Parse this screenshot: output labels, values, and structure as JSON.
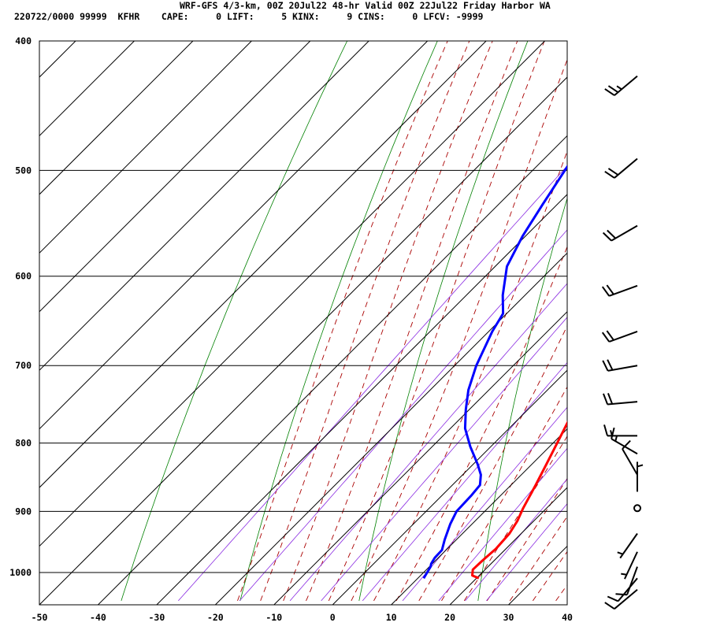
{
  "header": {
    "line1": "WRF-GFS 4/3-km, 00Z 20Jul22 48-hr Valid 00Z 22Jul22 Friday Harbor WA",
    "line2": "220722/0000 99999  KFHR    CAPE:     0 LIFT:     5 KINX:     9 CINS:     0 LFCV: -9999"
  },
  "colors": {
    "temperature": "#ff0000",
    "dewpoint": "#0000ff",
    "dry_adiabat": "#008000",
    "moist_adiabat": "#aa0000",
    "mixing_ratio": "#8a2be2",
    "grid": "#000000",
    "wind_barb": "#000000"
  },
  "chart_data": {
    "type": "line",
    "subtype": "skew-T log-P sounding",
    "x_ticks": [
      "-50",
      "-40",
      "-30",
      "-20",
      "-10",
      "0",
      "10",
      "20",
      "30",
      "40"
    ],
    "y_ticks": [
      "400",
      "500",
      "600",
      "700",
      "800",
      "900",
      "1000"
    ],
    "xlim": [
      -50,
      40
    ],
    "ylim": [
      1040,
      400
    ],
    "y_scale": "log",
    "grid": true,
    "series": [
      {
        "color": "#ff0000",
        "points": [
          {
            "p": 1010,
            "t": 20.4
          },
          {
            "p": 1005,
            "t": 18.8
          },
          {
            "p": 995,
            "t": 17.9
          },
          {
            "p": 980,
            "t": 18.0
          },
          {
            "p": 960,
            "t": 18.3
          },
          {
            "p": 935,
            "t": 18.0
          },
          {
            "p": 915,
            "t": 17.2
          },
          {
            "p": 895,
            "t": 16.0
          },
          {
            "p": 860,
            "t": 14.2
          },
          {
            "p": 830,
            "t": 12.5
          },
          {
            "p": 800,
            "t": 10.7
          },
          {
            "p": 760,
            "t": 8.2
          },
          {
            "p": 720,
            "t": 5.2
          },
          {
            "p": 680,
            "t": 2.5
          },
          {
            "p": 640,
            "t": -0.8
          },
          {
            "p": 600,
            "t": -3.8
          },
          {
            "p": 560,
            "t": -7.3
          },
          {
            "p": 520,
            "t": -11.0
          },
          {
            "p": 480,
            "t": -14.8
          },
          {
            "p": 445,
            "t": -18.8
          },
          {
            "p": 418,
            "t": -23.0
          }
        ]
      },
      {
        "color": "#0000ff",
        "points": [
          {
            "p": 1010,
            "t": 11.0
          },
          {
            "p": 990,
            "t": 10.2
          },
          {
            "p": 985,
            "t": 9.8
          },
          {
            "p": 975,
            "t": 9.4
          },
          {
            "p": 962,
            "t": 9.3
          },
          {
            "p": 945,
            "t": 8.0
          },
          {
            "p": 920,
            "t": 6.3
          },
          {
            "p": 900,
            "t": 5.2
          },
          {
            "p": 875,
            "t": 5.0
          },
          {
            "p": 860,
            "t": 4.7
          },
          {
            "p": 845,
            "t": 3.1
          },
          {
            "p": 830,
            "t": 0.8
          },
          {
            "p": 805,
            "t": -3.5
          },
          {
            "p": 780,
            "t": -7.5
          },
          {
            "p": 755,
            "t": -10.6
          },
          {
            "p": 730,
            "t": -13.5
          },
          {
            "p": 700,
            "t": -16.3
          },
          {
            "p": 660,
            "t": -19.4
          },
          {
            "p": 640,
            "t": -20.6
          },
          {
            "p": 620,
            "t": -23.8
          },
          {
            "p": 590,
            "t": -28.0
          },
          {
            "p": 560,
            "t": -30.5
          },
          {
            "p": 530,
            "t": -32.5
          },
          {
            "p": 500,
            "t": -34.5
          },
          {
            "p": 475,
            "t": -36.2
          },
          {
            "p": 450,
            "t": -38.5
          },
          {
            "p": 418,
            "t": -41.0
          }
        ]
      }
    ],
    "wind_barbs": [
      {
        "p": 425,
        "dir": 230,
        "spd": 25
      },
      {
        "p": 490,
        "dir": 230,
        "spd": 20
      },
      {
        "p": 550,
        "dir": 240,
        "spd": 20
      },
      {
        "p": 610,
        "dir": 250,
        "spd": 20
      },
      {
        "p": 660,
        "dir": 250,
        "spd": 20
      },
      {
        "p": 700,
        "dir": 260,
        "spd": 20
      },
      {
        "p": 745,
        "dir": 265,
        "spd": 20
      },
      {
        "p": 790,
        "dir": 270,
        "spd": 15
      },
      {
        "p": 815,
        "dir": 300,
        "spd": 15
      },
      {
        "p": 845,
        "dir": 330,
        "spd": 10
      },
      {
        "p": 870,
        "dir": 0,
        "spd": 5
      },
      {
        "p": 895,
        "dir": 0,
        "spd": 0
      },
      {
        "p": 935,
        "dir": 215,
        "spd": 5
      },
      {
        "p": 965,
        "dir": 205,
        "spd": 5
      },
      {
        "p": 990,
        "dir": 200,
        "spd": 10
      },
      {
        "p": 1010,
        "dir": 220,
        "spd": 10
      },
      {
        "p": 1030,
        "dir": 230,
        "spd": 10
      }
    ]
  }
}
